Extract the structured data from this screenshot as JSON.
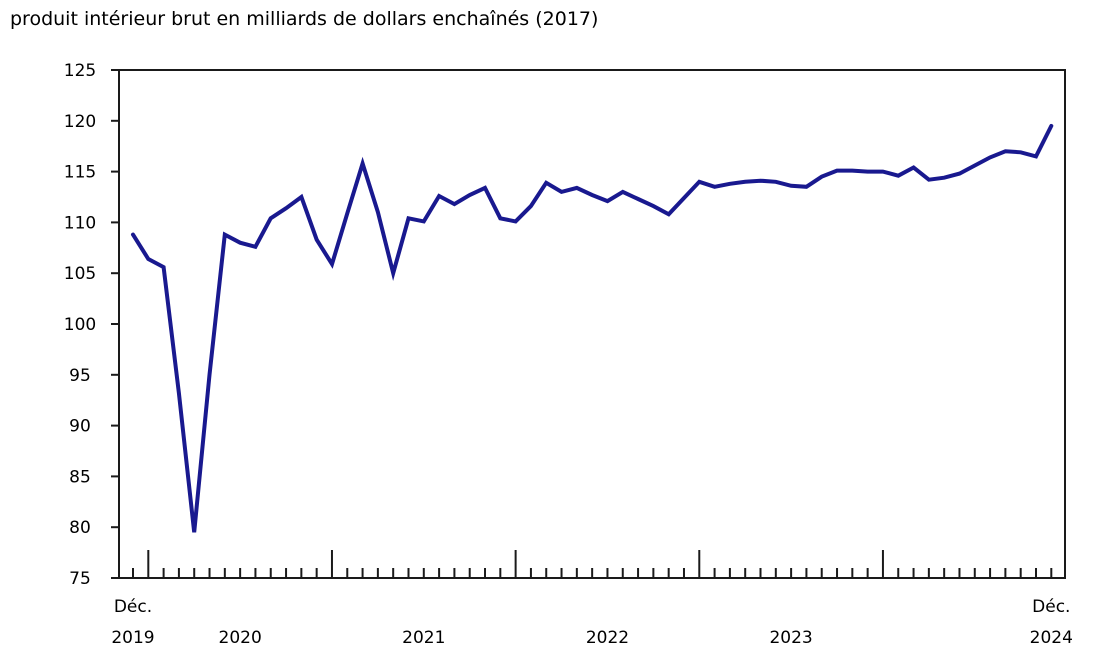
{
  "chart": {
    "title": "produit intérieur brut en milliards de dollars enchaînés (2017)"
  },
  "chart_data": {
    "type": "line",
    "title": "produit intérieur brut en milliards de dollars enchaînés (2017)",
    "series_name": "produit intérieur brut",
    "ylabel": "milliards de dollars enchaînés (2017)",
    "ylim": [
      75,
      125
    ],
    "y_tick_step": 5,
    "grid": false,
    "legend_position": "none",
    "line_color": "#19198f",
    "axis_color": "#1a1a1a",
    "x": [
      "2019-12",
      "2020-01",
      "2020-02",
      "2020-03",
      "2020-04",
      "2020-05",
      "2020-06",
      "2020-07",
      "2020-08",
      "2020-09",
      "2020-10",
      "2020-11",
      "2020-12",
      "2021-01",
      "2021-02",
      "2021-03",
      "2021-04",
      "2021-05",
      "2021-06",
      "2021-07",
      "2021-08",
      "2021-09",
      "2021-10",
      "2021-11",
      "2021-12",
      "2022-01",
      "2022-02",
      "2022-03",
      "2022-04",
      "2022-05",
      "2022-06",
      "2022-07",
      "2022-08",
      "2022-09",
      "2022-10",
      "2022-11",
      "2022-12",
      "2023-01",
      "2023-02",
      "2023-03",
      "2023-04",
      "2023-05",
      "2023-06",
      "2023-07",
      "2023-08",
      "2023-09",
      "2023-10",
      "2023-11",
      "2023-12",
      "2024-01",
      "2024-02",
      "2024-03",
      "2024-04",
      "2024-05",
      "2024-06",
      "2024-07",
      "2024-08",
      "2024-09",
      "2024-10",
      "2024-11",
      "2024-12"
    ],
    "values": [
      108.8,
      106.4,
      105.6,
      93.2,
      79.5,
      95.0,
      108.8,
      108.0,
      107.6,
      110.4,
      111.4,
      112.5,
      108.3,
      105.9,
      110.9,
      115.8,
      111.0,
      105.0,
      110.4,
      110.1,
      112.6,
      111.8,
      112.7,
      113.4,
      110.4,
      110.1,
      111.6,
      113.9,
      113.0,
      113.4,
      112.7,
      112.1,
      113.0,
      112.3,
      111.6,
      110.8,
      112.4,
      114.0,
      113.5,
      113.8,
      114.0,
      114.1,
      114.0,
      113.6,
      113.5,
      114.5,
      115.1,
      115.1,
      115.0,
      115.0,
      114.6,
      115.4,
      114.2,
      114.4,
      114.8,
      115.6,
      116.4,
      117.0,
      116.9,
      116.5,
      119.5
    ],
    "y_tick_labels": [
      "75",
      "80",
      "85",
      "90",
      "95",
      "100",
      "105",
      "110",
      "115",
      "120",
      "125"
    ],
    "major_tick_month_indices": [
      1,
      13,
      25,
      37,
      49
    ],
    "x_tick_labels": [
      {
        "top": "Déc.",
        "bottom": "2019",
        "month_index": 0
      },
      {
        "top": "",
        "bottom": "2020",
        "month_index": 7
      },
      {
        "top": "",
        "bottom": "2021",
        "month_index": 19
      },
      {
        "top": "",
        "bottom": "2022",
        "month_index": 31
      },
      {
        "top": "",
        "bottom": "2023",
        "month_index": 43
      },
      {
        "top": "Déc.",
        "bottom": "2024",
        "month_index": 60
      }
    ]
  }
}
